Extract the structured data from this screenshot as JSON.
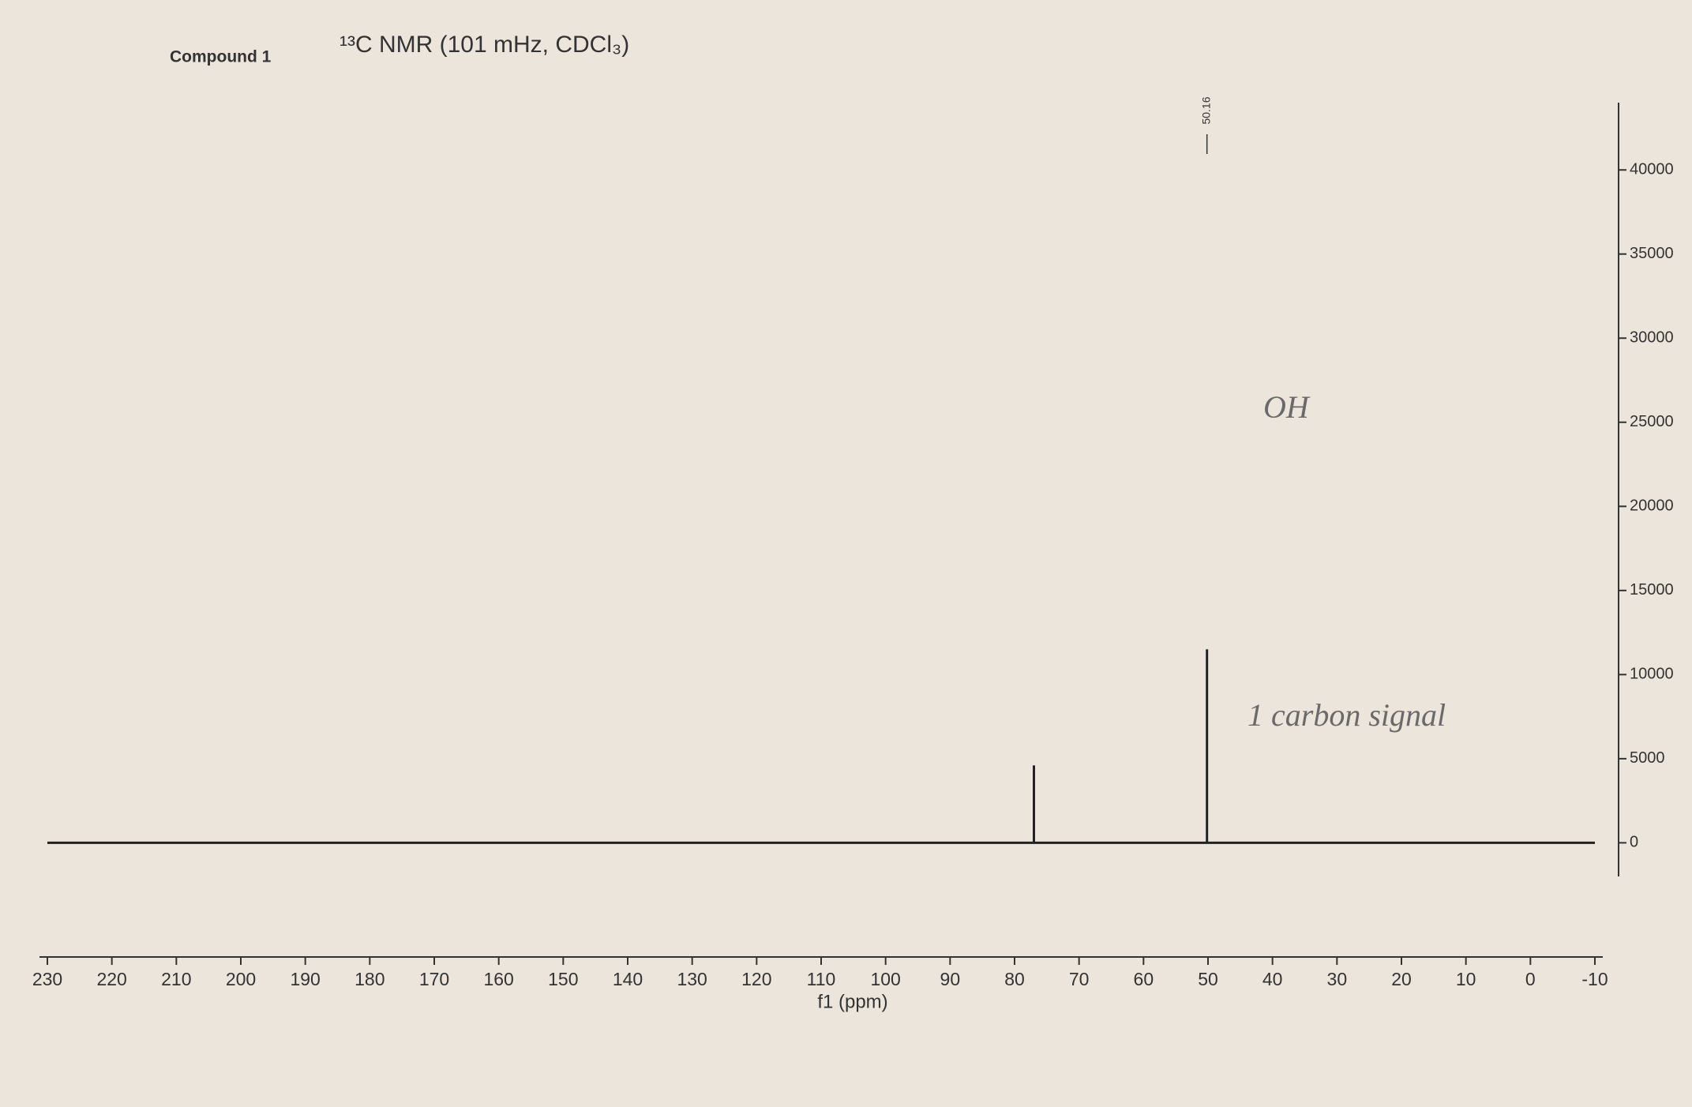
{
  "chart_data": {
    "type": "spectrum",
    "header": "Compound 1",
    "title": "¹³C NMR (101 mHz, CDCl₃)",
    "x_label": "f1 (ppm)",
    "x": [
      77,
      50.16
    ],
    "values": [
      4600,
      11500
    ],
    "peak_labels": [
      50.16
    ],
    "color": "#222222",
    "xlim": [
      230,
      -10
    ],
    "xticks": [
      230,
      220,
      210,
      200,
      190,
      180,
      170,
      160,
      150,
      140,
      130,
      120,
      110,
      100,
      90,
      80,
      70,
      60,
      50,
      40,
      30,
      20,
      10,
      0,
      -10
    ],
    "ylim": [
      -2000,
      44000
    ],
    "yticks": [
      0,
      5000,
      10000,
      15000,
      20000,
      25000,
      30000,
      35000,
      40000
    ],
    "annotations": [
      "OH",
      "1 carbon signal"
    ]
  }
}
